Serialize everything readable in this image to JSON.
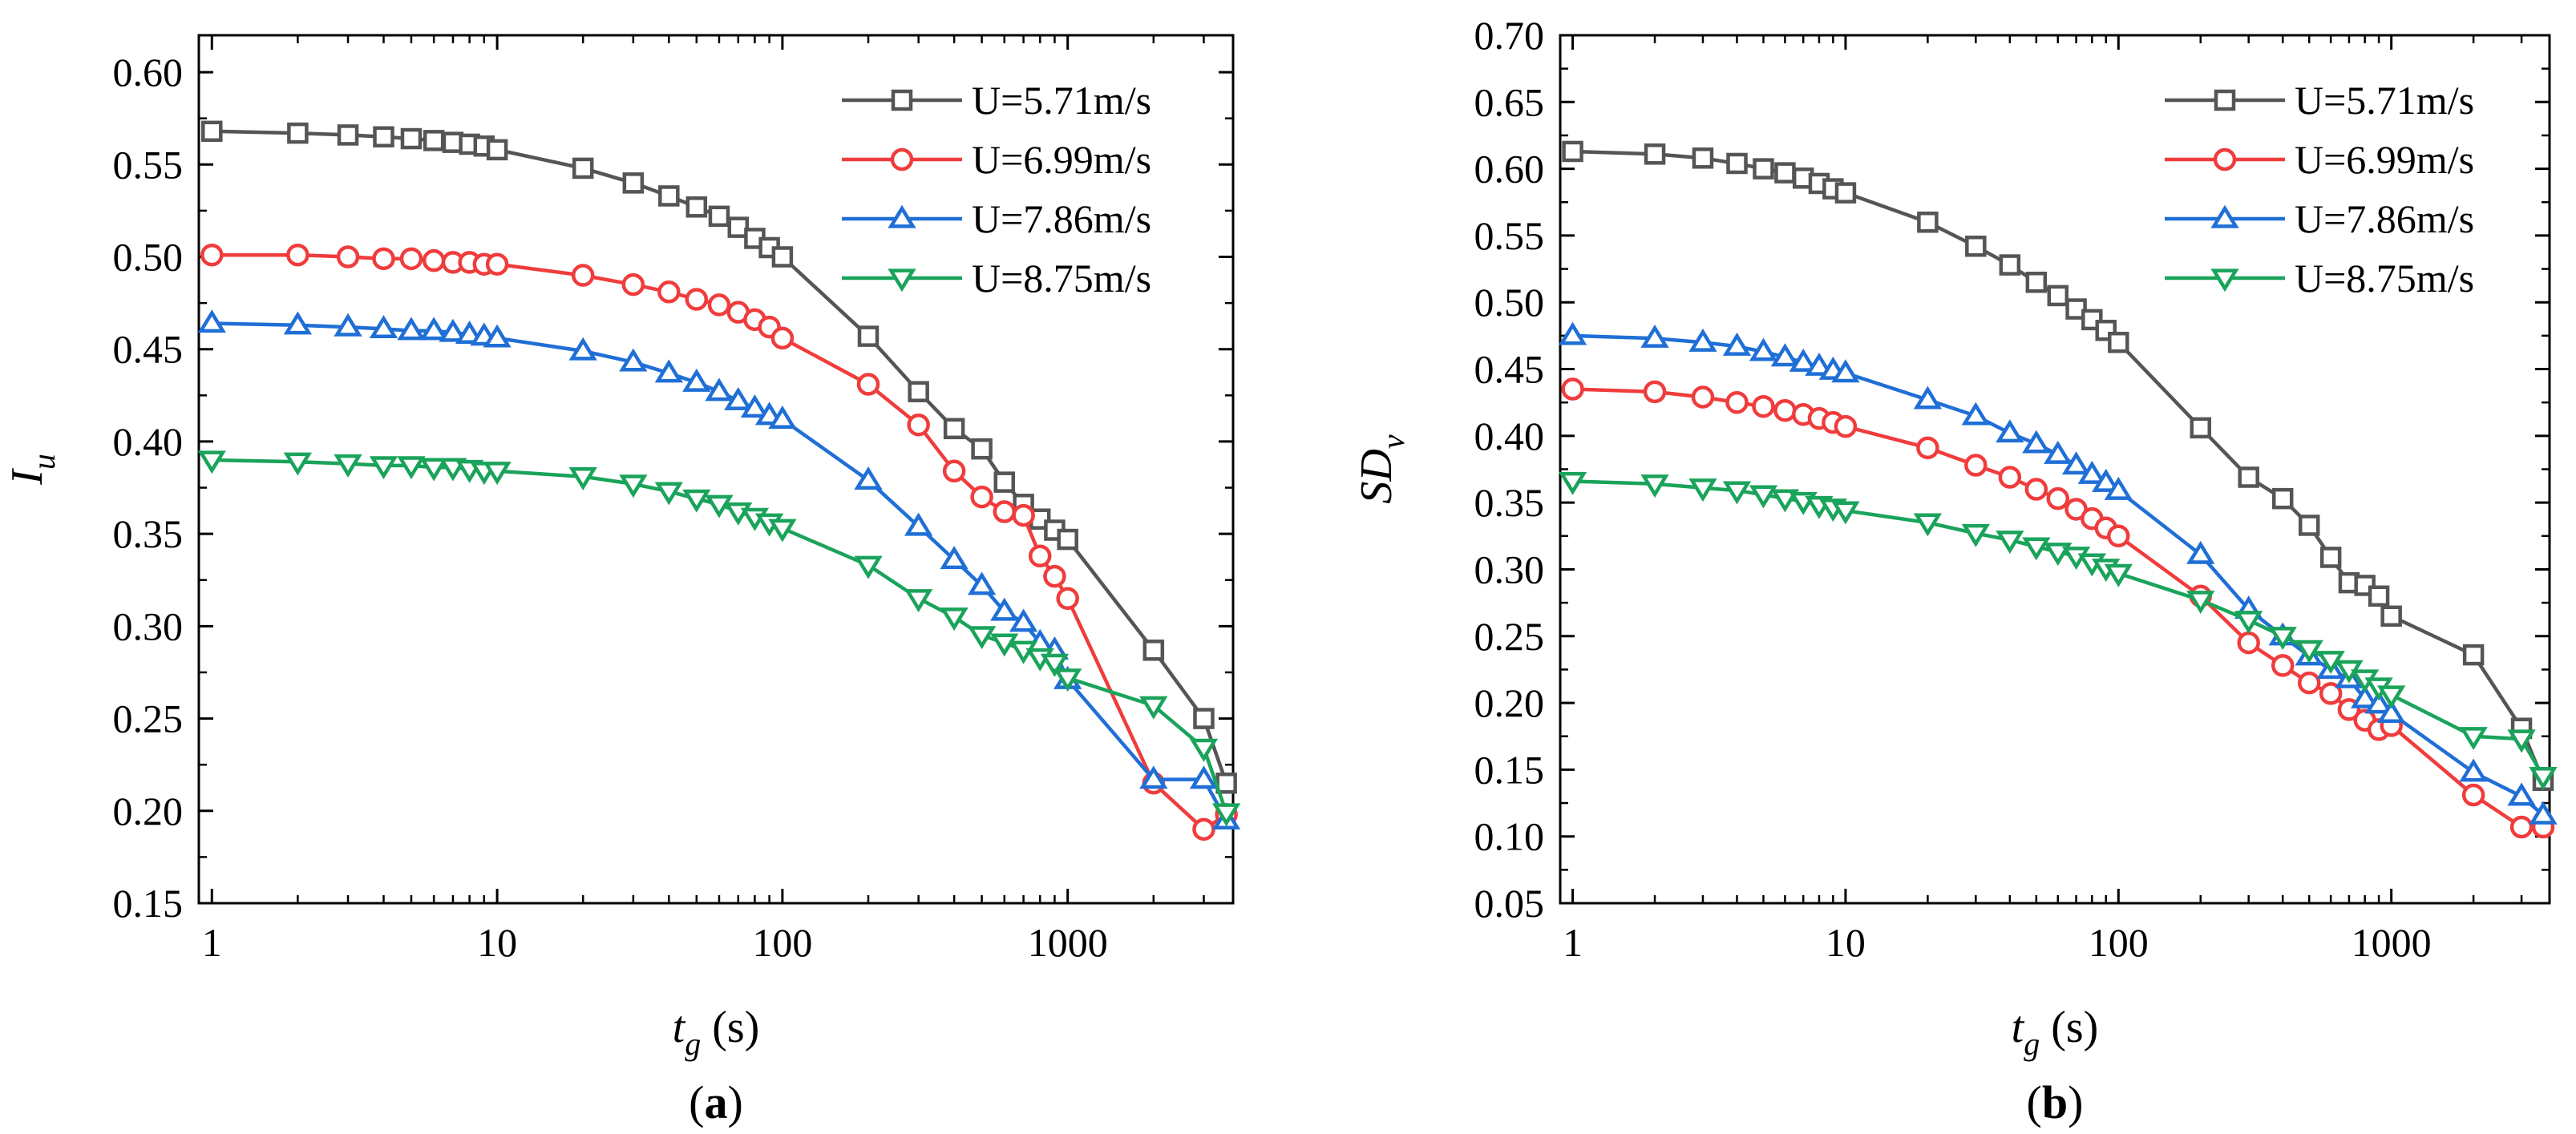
{
  "chart_data": [
    {
      "type": "line",
      "panel_label": {
        "open": "(",
        "letter": "a",
        "close": ")"
      },
      "xlabel": {
        "var": "t",
        "sub": "g",
        "unit": " (s)"
      },
      "ylabel": {
        "var": "I",
        "sub": "u"
      },
      "xscale": "log",
      "xlim": [
        0.9,
        3800
      ],
      "ylim": [
        0.15,
        0.62
      ],
      "xticks": [
        1,
        10,
        100,
        1000
      ],
      "xtick_labels": [
        "1",
        "10",
        "100",
        "1000"
      ],
      "yticks": [
        0.15,
        0.2,
        0.25,
        0.3,
        0.35,
        0.4,
        0.45,
        0.5,
        0.55,
        0.6
      ],
      "ytick_labels": [
        "0.15",
        "0.20",
        "0.25",
        "0.30",
        "0.35",
        "0.40",
        "0.45",
        "0.50",
        "0.55",
        "0.60"
      ],
      "legend_position": "top-right",
      "x": [
        1,
        2,
        3,
        4,
        5,
        6,
        7,
        8,
        9,
        10,
        20,
        30,
        40,
        50,
        60,
        70,
        80,
        90,
        100,
        200,
        300,
        400,
        500,
        600,
        700,
        800,
        900,
        1000,
        2000,
        3000,
        3600
      ],
      "series": [
        {
          "name": "U=5.71m/s",
          "color": "#555555",
          "marker": "square",
          "values": [
            0.568,
            0.567,
            0.566,
            0.565,
            0.564,
            0.563,
            0.562,
            0.561,
            0.56,
            0.558,
            0.548,
            0.54,
            0.533,
            0.527,
            0.522,
            0.516,
            0.51,
            0.505,
            0.5,
            0.457,
            0.427,
            0.407,
            0.396,
            0.378,
            0.366,
            0.358,
            0.352,
            0.347,
            0.287,
            0.25,
            0.215
          ]
        },
        {
          "name": "U=6.99m/s",
          "color": "#f03c3c",
          "marker": "circle",
          "values": [
            0.501,
            0.501,
            0.5,
            0.499,
            0.499,
            0.498,
            0.497,
            0.497,
            0.496,
            0.496,
            0.49,
            0.485,
            0.481,
            0.477,
            0.474,
            0.47,
            0.466,
            0.462,
            0.456,
            0.431,
            0.409,
            0.384,
            0.37,
            0.362,
            0.36,
            0.338,
            0.327,
            0.315,
            0.215,
            0.19,
            0.198
          ]
        },
        {
          "name": "U=7.86m/s",
          "color": "#1f6fd6",
          "marker": "triangle-up",
          "values": [
            0.464,
            0.463,
            0.462,
            0.461,
            0.46,
            0.46,
            0.459,
            0.458,
            0.457,
            0.456,
            0.449,
            0.443,
            0.437,
            0.432,
            0.427,
            0.422,
            0.418,
            0.414,
            0.412,
            0.379,
            0.354,
            0.336,
            0.322,
            0.308,
            0.302,
            0.291,
            0.287,
            0.271,
            0.217,
            0.217,
            0.195
          ]
        },
        {
          "name": "U=8.75m/s",
          "color": "#1aa35a",
          "marker": "triangle-down",
          "values": [
            0.39,
            0.389,
            0.388,
            0.387,
            0.387,
            0.386,
            0.386,
            0.385,
            0.384,
            0.384,
            0.381,
            0.377,
            0.373,
            0.369,
            0.366,
            0.362,
            0.359,
            0.356,
            0.353,
            0.333,
            0.315,
            0.305,
            0.295,
            0.291,
            0.287,
            0.283,
            0.28,
            0.272,
            0.257,
            0.234,
            0.199
          ]
        }
      ]
    },
    {
      "type": "line",
      "panel_label": {
        "open": "(",
        "letter": "b",
        "close": ")"
      },
      "xlabel": {
        "var": "t",
        "sub": "g",
        "unit": " (s)"
      },
      "ylabel": {
        "var": "SD",
        "sub": "v"
      },
      "xscale": "log",
      "xlim": [
        0.9,
        3800
      ],
      "ylim": [
        0.05,
        0.7
      ],
      "xticks": [
        1,
        10,
        100,
        1000
      ],
      "xtick_labels": [
        "1",
        "10",
        "100",
        "1000"
      ],
      "yticks": [
        0.05,
        0.1,
        0.15,
        0.2,
        0.25,
        0.3,
        0.35,
        0.4,
        0.45,
        0.5,
        0.55,
        0.6,
        0.65,
        0.7
      ],
      "ytick_labels": [
        "0.05",
        "0.10",
        "0.15",
        "0.20",
        "0.25",
        "0.30",
        "0.35",
        "0.40",
        "0.45",
        "0.50",
        "0.55",
        "0.60",
        "0.65",
        "0.70"
      ],
      "legend_position": "top-right",
      "x": [
        1,
        2,
        3,
        4,
        5,
        6,
        7,
        8,
        9,
        10,
        20,
        30,
        40,
        50,
        60,
        70,
        80,
        90,
        100,
        200,
        300,
        400,
        500,
        600,
        700,
        800,
        900,
        1000,
        2000,
        3000,
        3600
      ],
      "series": [
        {
          "name": "U=5.71m/s",
          "color": "#555555",
          "marker": "square",
          "values": [
            0.613,
            0.611,
            0.608,
            0.604,
            0.6,
            0.597,
            0.593,
            0.589,
            0.585,
            0.582,
            0.56,
            0.542,
            0.528,
            0.515,
            0.505,
            0.495,
            0.487,
            0.479,
            0.47,
            0.406,
            0.369,
            0.353,
            0.333,
            0.309,
            0.29,
            0.288,
            0.28,
            0.265,
            0.236,
            0.181,
            0.142
          ]
        },
        {
          "name": "U=6.99m/s",
          "color": "#f03c3c",
          "marker": "circle",
          "values": [
            0.435,
            0.433,
            0.429,
            0.425,
            0.422,
            0.419,
            0.416,
            0.413,
            0.41,
            0.407,
            0.391,
            0.378,
            0.369,
            0.36,
            0.353,
            0.345,
            0.338,
            0.331,
            0.325,
            0.28,
            0.245,
            0.228,
            0.215,
            0.207,
            0.195,
            0.187,
            0.18,
            0.183,
            0.131,
            0.107,
            0.107
          ]
        },
        {
          "name": "U=7.86m/s",
          "color": "#1f6fd6",
          "marker": "triangle-up",
          "values": [
            0.475,
            0.473,
            0.47,
            0.467,
            0.463,
            0.459,
            0.455,
            0.452,
            0.449,
            0.447,
            0.427,
            0.415,
            0.402,
            0.394,
            0.386,
            0.378,
            0.371,
            0.365,
            0.359,
            0.311,
            0.27,
            0.25,
            0.235,
            0.225,
            0.218,
            0.203,
            0.199,
            0.192,
            0.148,
            0.13,
            0.116
          ]
        },
        {
          "name": "U=8.75m/s",
          "color": "#1aa35a",
          "marker": "triangle-down",
          "values": [
            0.366,
            0.364,
            0.361,
            0.359,
            0.356,
            0.353,
            0.351,
            0.348,
            0.346,
            0.344,
            0.335,
            0.327,
            0.322,
            0.317,
            0.313,
            0.31,
            0.305,
            0.301,
            0.297,
            0.277,
            0.262,
            0.25,
            0.24,
            0.232,
            0.225,
            0.218,
            0.212,
            0.206,
            0.175,
            0.173,
            0.145
          ]
        }
      ]
    }
  ]
}
